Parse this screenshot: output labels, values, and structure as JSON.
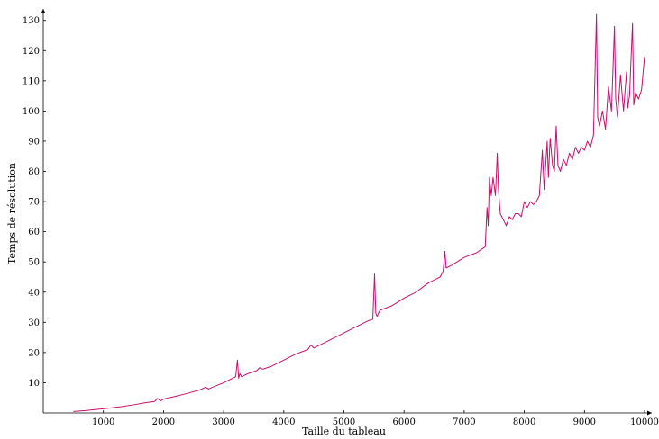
{
  "chart_data": {
    "type": "line",
    "title": "",
    "xlabel": "Taille du tableau",
    "ylabel": "Temps de résolution",
    "xlim": [
      0,
      10000
    ],
    "ylim": [
      0,
      132
    ],
    "xticks": [
      1000,
      2000,
      3000,
      4000,
      5000,
      6000,
      7000,
      8000,
      9000,
      10000
    ],
    "yticks": [
      10,
      20,
      30,
      40,
      50,
      60,
      70,
      80,
      90,
      100,
      110,
      120,
      130
    ],
    "grid": false,
    "legend": "none",
    "series": [
      {
        "color": "#c8106e",
        "x": [
          500,
          700,
          900,
          1100,
          1300,
          1500,
          1700,
          1850,
          1900,
          1950,
          2000,
          2200,
          2400,
          2600,
          2700,
          2750,
          2800,
          3000,
          3150,
          3200,
          3230,
          3250,
          3270,
          3300,
          3400,
          3550,
          3600,
          3650,
          3800,
          3950,
          4000,
          4050,
          4200,
          4400,
          4450,
          4500,
          4600,
          4800,
          5000,
          5200,
          5400,
          5480,
          5510,
          5530,
          5550,
          5600,
          5800,
          6000,
          6200,
          6400,
          6600,
          6650,
          6680,
          6700,
          6800,
          7000,
          7200,
          7350,
          7380,
          7400,
          7420,
          7450,
          7480,
          7520,
          7550,
          7570,
          7600,
          7650,
          7700,
          7750,
          7800,
          7850,
          7900,
          7950,
          8000,
          8050,
          8100,
          8150,
          8200,
          8250,
          8300,
          8330,
          8380,
          8400,
          8430,
          8470,
          8500,
          8530,
          8560,
          8600,
          8650,
          8700,
          8750,
          8800,
          8850,
          8900,
          8950,
          9000,
          9050,
          9100,
          9150,
          9200,
          9220,
          9250,
          9300,
          9350,
          9400,
          9450,
          9500,
          9520,
          9550,
          9600,
          9650,
          9700,
          9720,
          9750,
          9800,
          9820,
          9850,
          9900,
          9950,
          10000
        ],
        "y": [
          0.5,
          0.8,
          1.2,
          1.6,
          2.1,
          2.7,
          3.4,
          3.8,
          4.8,
          4.0,
          4.6,
          5.5,
          6.5,
          7.6,
          8.5,
          7.9,
          8.4,
          10.0,
          11.5,
          12.0,
          17.5,
          11.5,
          13.0,
          12.0,
          13.0,
          14.0,
          15.0,
          14.5,
          15.5,
          17.0,
          17.5,
          18.0,
          19.5,
          21.0,
          22.5,
          21.5,
          22.5,
          24.5,
          26.5,
          28.5,
          30.5,
          31.0,
          46.0,
          33.0,
          32.0,
          34.0,
          35.5,
          38.0,
          40.0,
          43.0,
          45.0,
          47.0,
          53.5,
          48.0,
          49.0,
          51.5,
          53.0,
          55.0,
          68.0,
          62.0,
          78.0,
          72.0,
          78.0,
          72.0,
          86.0,
          74.0,
          66.0,
          64.0,
          62.0,
          65.0,
          64.0,
          66.0,
          66.0,
          65.0,
          70.0,
          68.0,
          70.0,
          69.0,
          70.0,
          72.0,
          87.0,
          74.0,
          90.0,
          78.0,
          91.0,
          82.0,
          80.0,
          95.0,
          82.0,
          80.0,
          84.0,
          82.0,
          86.0,
          84.0,
          88.0,
          86.0,
          88.0,
          87.0,
          90.0,
          88.0,
          92.0,
          132.0,
          98.0,
          95.0,
          100.0,
          94.0,
          108.0,
          100.0,
          128.0,
          104.0,
          98.0,
          112.0,
          100.0,
          113.0,
          101.0,
          105.0,
          129.0,
          102.0,
          106.0,
          104.0,
          107.0,
          118.0
        ]
      }
    ]
  }
}
